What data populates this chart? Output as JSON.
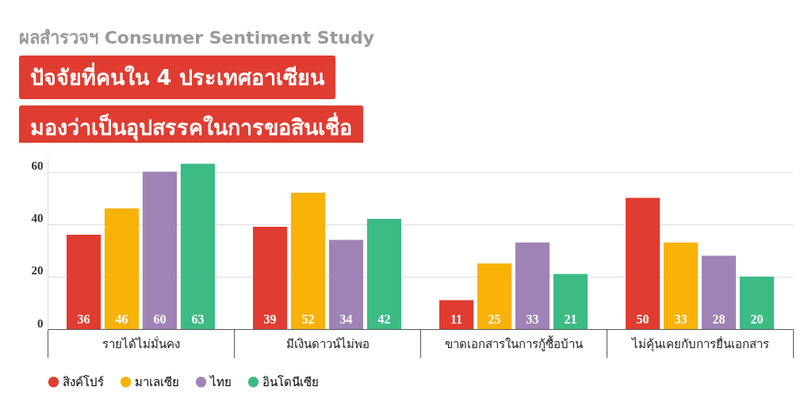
{
  "chart_data": {
    "type": "bar",
    "subtitle": "ผลสำรวจฯ Consumer Sentiment Study",
    "title": "ปัจจัยที่คนใน 4 ประเทศอาเซียน\nมองว่าเป็นอุปสรรคในการขอสินเชื่อ",
    "categories": [
      "รายได้ไม่มั่นคง",
      "มีเงินดาวน์ไม่พอ",
      "ขาดเอกสารในการกู้ซื้อบ้าน",
      "ไม่คุ้นเคยกับการยื่นเอกสาร"
    ],
    "series": [
      {
        "name": "สิงค์โปร์",
        "color": "#e03c31",
        "values": [
          36,
          39,
          11,
          50
        ]
      },
      {
        "name": "มาเลเซีย",
        "color": "#f9b208",
        "values": [
          46,
          52,
          25,
          33
        ]
      },
      {
        "name": "ไทย",
        "color": "#a083b6",
        "values": [
          60,
          34,
          33,
          28
        ]
      },
      {
        "name": "อินโดนีเซีย",
        "color": "#3dbb84",
        "values": [
          63,
          42,
          21,
          20
        ]
      }
    ],
    "ylim": [
      0,
      65
    ],
    "yticks": [
      0,
      20,
      40,
      60
    ],
    "grid": "y",
    "legend": "bottom",
    "data_labels": true
  }
}
